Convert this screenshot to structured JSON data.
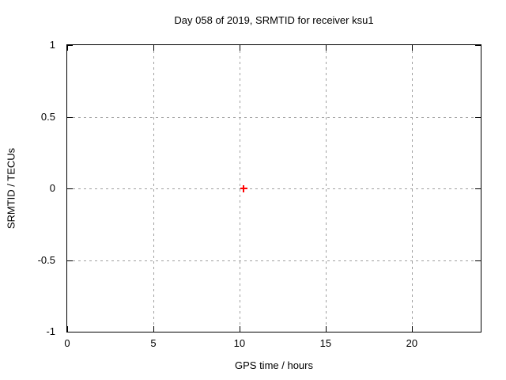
{
  "chart_data": {
    "type": "scatter",
    "title": "Day 058 of 2019, SRMTID for receiver ksu1",
    "xlabel": "GPS time / hours",
    "ylabel": "SRMTID / TECUs",
    "xlim": [
      0,
      24
    ],
    "ylim": [
      -1,
      1
    ],
    "xticks": [
      0,
      5,
      10,
      15,
      20
    ],
    "yticks": [
      -1,
      -0.5,
      0,
      0.5,
      1
    ],
    "grid": true,
    "legend": "none",
    "series": [
      {
        "name": "SRMTID",
        "marker": "plus",
        "color": "#ff0000",
        "points": [
          {
            "x": 10.25,
            "y": 0
          }
        ]
      }
    ]
  },
  "colors": {
    "foreground": "#000000",
    "grid": "#a0a0a0",
    "background": "#ffffff",
    "marker": "#ff0000"
  }
}
